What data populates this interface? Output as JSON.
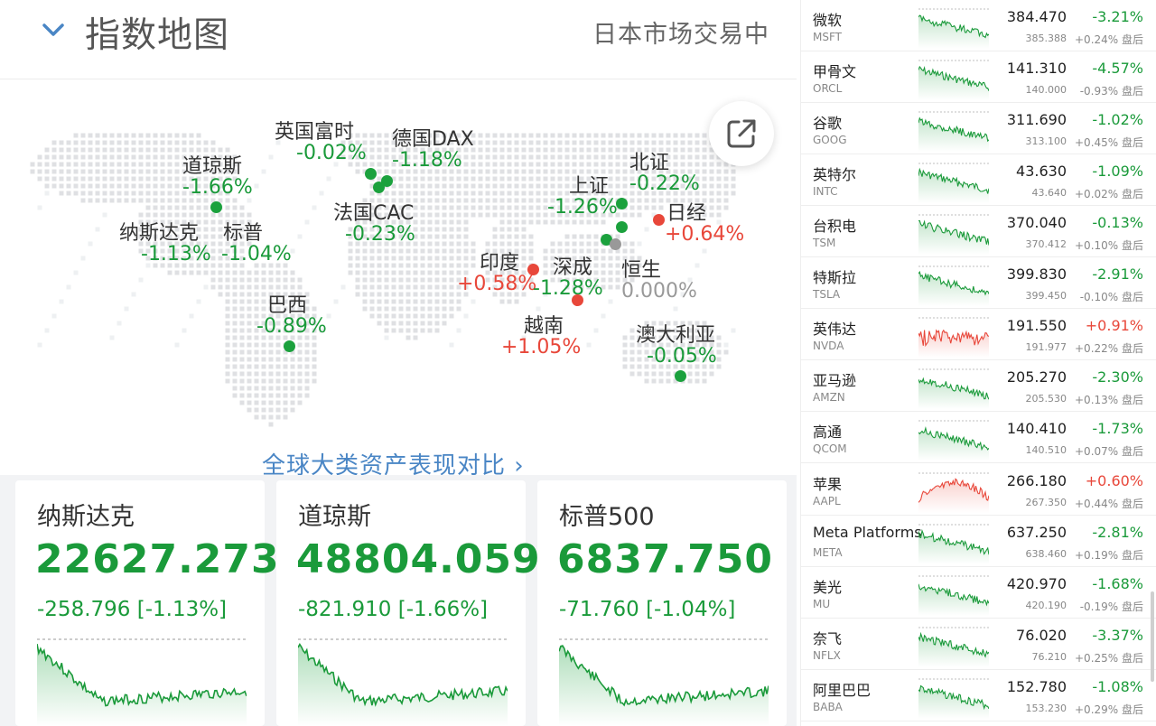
{
  "header": {
    "title": "指数地图",
    "market_status": "日本市场交易中"
  },
  "colors": {
    "up": "#e8473a",
    "down": "#1a9a3a",
    "flat": "#999999",
    "link": "#4a86c5"
  },
  "map": {
    "markers": [
      {
        "id": "dowjones",
        "name": "道琼斯",
        "pct": "-1.66%",
        "dir": "dn"
      },
      {
        "id": "nasdaq",
        "name": "纳斯达克",
        "pct": "-1.13%",
        "dir": "dn"
      },
      {
        "id": "sp",
        "name": "标普",
        "pct": "-1.04%",
        "dir": "dn"
      },
      {
        "id": "ftse",
        "name": "英国富时",
        "pct": "-0.02%",
        "dir": "dn"
      },
      {
        "id": "dax",
        "name": "德国DAX",
        "pct": "-1.18%",
        "dir": "dn"
      },
      {
        "id": "cac",
        "name": "法国CAC",
        "pct": "-0.23%",
        "dir": "dn"
      },
      {
        "id": "brazil",
        "name": "巴西",
        "pct": "-0.89%",
        "dir": "dn"
      },
      {
        "id": "india",
        "name": "印度",
        "pct": "+0.58%",
        "dir": "up"
      },
      {
        "id": "shenzhen",
        "name": "深成",
        "pct": "-1.28%",
        "dir": "dn"
      },
      {
        "id": "shanghai",
        "name": "上证",
        "pct": "-1.26%",
        "dir": "dn"
      },
      {
        "id": "beijing",
        "name": "北证",
        "pct": "-0.22%",
        "dir": "dn"
      },
      {
        "id": "nikkei",
        "name": "日经",
        "pct": "+0.64%",
        "dir": "up"
      },
      {
        "id": "hangseng",
        "name": "恒生",
        "pct": "0.000%",
        "dir": "fl"
      },
      {
        "id": "vietnam",
        "name": "越南",
        "pct": "+1.05%",
        "dir": "up"
      },
      {
        "id": "australia",
        "name": "澳大利亚",
        "pct": "-0.05%",
        "dir": "dn"
      }
    ],
    "compare_link": "全球大类资产表现对比 ›"
  },
  "cards": [
    {
      "name": "纳斯达克",
      "value": "22627.273",
      "change": "-258.796 [-1.13%]"
    },
    {
      "name": "道琼斯",
      "value": "48804.059",
      "change": "-821.910 [-1.66%]"
    },
    {
      "name": "标普500",
      "value": "6837.750",
      "change": "-71.760 [-1.04%]"
    }
  ],
  "stocks": [
    {
      "name": "微软",
      "ticker": "MSFT",
      "price": "384.470",
      "pct": "-3.21%",
      "prev": "385.388",
      "after": "+0.24% 盘后",
      "dir": "dn"
    },
    {
      "name": "甲骨文",
      "ticker": "ORCL",
      "price": "141.310",
      "pct": "-4.57%",
      "prev": "140.000",
      "after": "-0.93% 盘后",
      "dir": "dn"
    },
    {
      "name": "谷歌",
      "ticker": "GOOG",
      "price": "311.690",
      "pct": "-1.02%",
      "prev": "313.100",
      "after": "+0.45% 盘后",
      "dir": "dn"
    },
    {
      "name": "英特尔",
      "ticker": "INTC",
      "price": "43.630",
      "pct": "-1.09%",
      "prev": "43.640",
      "after": "+0.02% 盘后",
      "dir": "dn"
    },
    {
      "name": "台积电",
      "ticker": "TSM",
      "price": "370.040",
      "pct": "-0.13%",
      "prev": "370.412",
      "after": "+0.10% 盘后",
      "dir": "dn"
    },
    {
      "name": "特斯拉",
      "ticker": "TSLA",
      "price": "399.830",
      "pct": "-2.91%",
      "prev": "399.450",
      "after": "-0.10% 盘后",
      "dir": "dn"
    },
    {
      "name": "英伟达",
      "ticker": "NVDA",
      "price": "191.550",
      "pct": "+0.91%",
      "prev": "191.977",
      "after": "+0.22% 盘后",
      "dir": "up"
    },
    {
      "name": "亚马逊",
      "ticker": "AMZN",
      "price": "205.270",
      "pct": "-2.30%",
      "prev": "205.530",
      "after": "+0.13% 盘后",
      "dir": "dn"
    },
    {
      "name": "高通",
      "ticker": "QCOM",
      "price": "140.410",
      "pct": "-1.73%",
      "prev": "140.510",
      "after": "+0.07% 盘后",
      "dir": "dn"
    },
    {
      "name": "苹果",
      "ticker": "AAPL",
      "price": "266.180",
      "pct": "+0.60%",
      "prev": "267.350",
      "after": "+0.44% 盘后",
      "dir": "up"
    },
    {
      "name": "Meta Platforms",
      "ticker": "META",
      "price": "637.250",
      "pct": "-2.81%",
      "prev": "638.460",
      "after": "+0.19% 盘后",
      "dir": "dn"
    },
    {
      "name": "美光",
      "ticker": "MU",
      "price": "420.970",
      "pct": "-1.68%",
      "prev": "420.190",
      "after": "-0.19% 盘后",
      "dir": "dn"
    },
    {
      "name": "奈飞",
      "ticker": "NFLX",
      "price": "76.020",
      "pct": "-3.37%",
      "prev": "76.210",
      "after": "+0.25% 盘后",
      "dir": "dn"
    },
    {
      "name": "阿里巴巴",
      "ticker": "BABA",
      "price": "152.780",
      "pct": "-1.08%",
      "prev": "153.230",
      "after": "+0.29% 盘后",
      "dir": "dn"
    }
  ]
}
